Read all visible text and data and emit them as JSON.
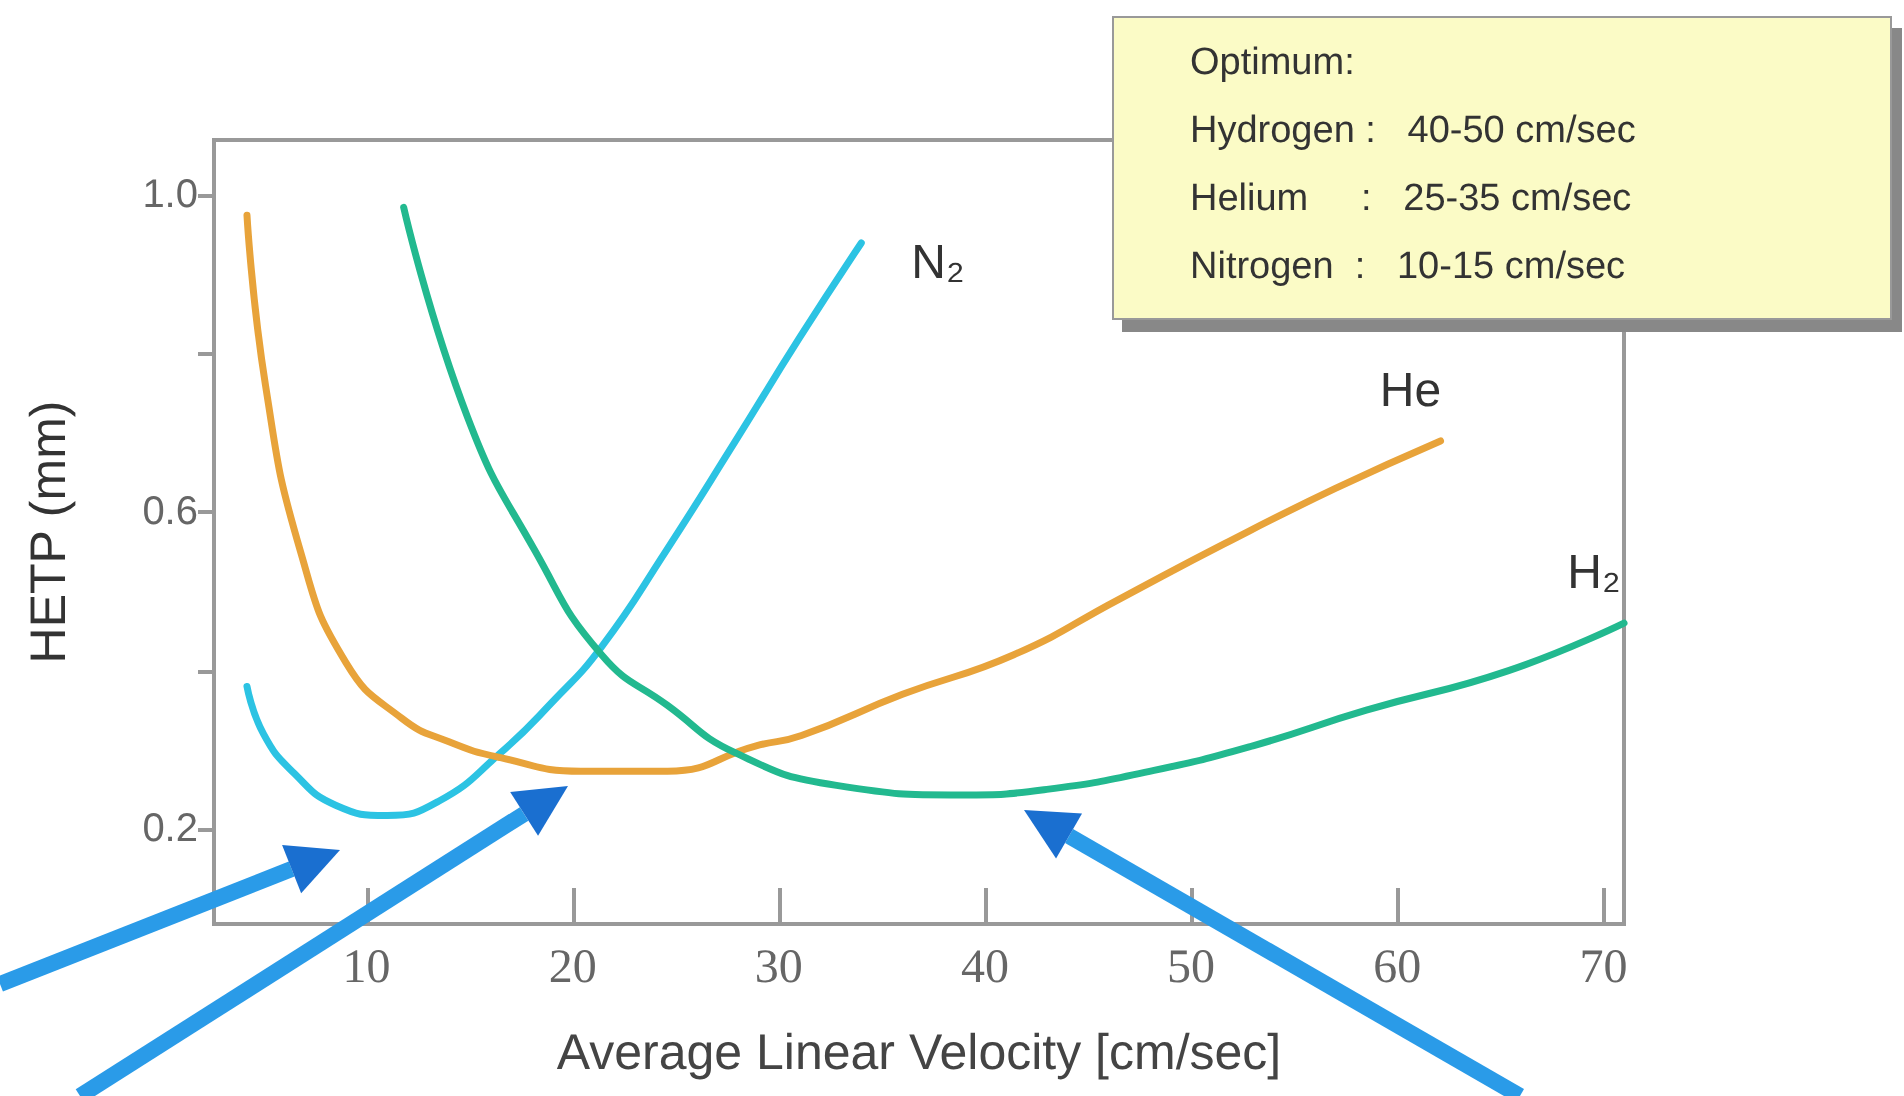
{
  "chart_data": {
    "type": "line",
    "xlabel": "Average Linear Velocity [cm/sec]",
    "ylabel": "HETP (mm)",
    "xlim": [
      2.6,
      71
    ],
    "ylim": [
      0.08,
      1.07
    ],
    "xticks": [
      10,
      20,
      30,
      40,
      50,
      60,
      70
    ],
    "yticks": [
      {
        "value": 0.2,
        "label": "0.2"
      },
      {
        "value": 0.4,
        "label": null
      },
      {
        "value": 0.6,
        "label": "0.6"
      },
      {
        "value": 0.8,
        "label": null
      },
      {
        "value": 1.0,
        "label": "1.0"
      }
    ],
    "grid": false,
    "marker": "none",
    "line_style": "solid",
    "annotations": [
      "Optimum:",
      "Hydrogen :   40-50 cm/sec",
      "Helium     :   25-35 cm/sec",
      "Nitrogen  :   10-15 cm/sec"
    ],
    "series": [
      {
        "name": "N₂",
        "color": "#2cc3e3",
        "x": [
          4.2,
          5,
          6.5,
          8.5,
          11,
          13.5,
          16.5,
          19,
          21.4,
          24.5,
          27.9,
          31,
          34
        ],
        "values": [
          0.38,
          0.32,
          0.27,
          0.23,
          0.217,
          0.235,
          0.296,
          0.36,
          0.43,
          0.55,
          0.69,
          0.82,
          0.94
        ]
      },
      {
        "name": "He",
        "color": "#e8a33a",
        "x": [
          4.2,
          5.1,
          6.8,
          9,
          11.7,
          14,
          16.5,
          20.4,
          24.6,
          28.9,
          31.1,
          36,
          41.4,
          46.5,
          51.6,
          57,
          62.1
        ],
        "values": [
          0.975,
          0.76,
          0.55,
          0.41,
          0.34,
          0.31,
          0.29,
          0.273,
          0.273,
          0.305,
          0.318,
          0.37,
          0.42,
          0.49,
          0.56,
          0.63,
          0.69
        ]
      },
      {
        "name": "H₂",
        "color": "#22b98f",
        "x": [
          11.8,
          14.9,
          18.2,
          21.4,
          24.6,
          27.9,
          32.8,
          38.9,
          43,
          48.2,
          53,
          58.5,
          65.4,
          71
        ],
        "values": [
          0.985,
          0.72,
          0.55,
          0.42,
          0.356,
          0.296,
          0.255,
          0.243,
          0.25,
          0.274,
          0.305,
          0.35,
          0.4,
          0.46
        ]
      }
    ]
  }
}
